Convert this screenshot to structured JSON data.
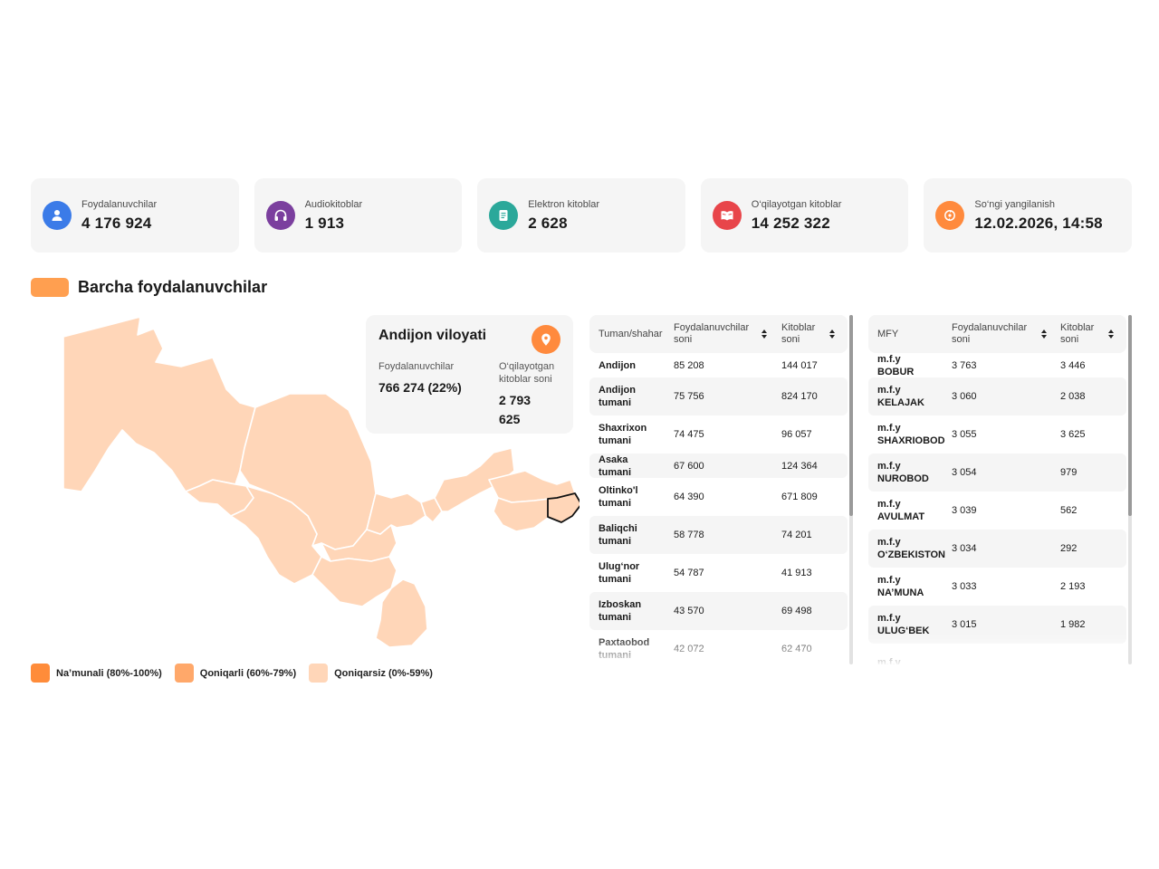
{
  "stats": [
    {
      "label": "Foydalanuvchilar",
      "value": "4 176 924",
      "icon": "user-icon",
      "color": "#3b7be8"
    },
    {
      "label": "Audiokitoblar",
      "value": "1 913",
      "icon": "headphones-icon",
      "color": "#7b3f9e"
    },
    {
      "label": "Elektron kitoblar",
      "value": "2 628",
      "icon": "ebook-icon",
      "color": "#2ba89a"
    },
    {
      "label": "O‘qilayotgan kitoblar",
      "value": "14 252 322",
      "icon": "reading-book-icon",
      "color": "#e8454a"
    },
    {
      "label": "So‘ngi yangilanish",
      "value": "12.02.2026, 14:58",
      "icon": "refresh-icon",
      "color": "#ff8a3d"
    }
  ],
  "section": {
    "title": "Barcha foydalanuvchilar",
    "swatch_color": "#ff9f50"
  },
  "map": {
    "fill_color": "#ffd6b8",
    "border_color": "#ffffff",
    "selected_region": "Andijon viloyati",
    "selected_stroke": "#111111"
  },
  "region_card": {
    "name": "Andijon viloyati",
    "users_label": "Foydalanuvchilar",
    "users_value": "766 274 (22%)",
    "reading_label": "O‘qilayotgan kitoblar soni",
    "reading_value": "2 793 625"
  },
  "legend": [
    {
      "label": "Na’munali (80%-100%)",
      "color": "#ff8c3a"
    },
    {
      "label": "Qoniqarli (60%-79%)",
      "color": "#ffa86a"
    },
    {
      "label": "Qoniqarsiz (0%-59%)",
      "color": "#ffd6b8"
    }
  ],
  "districts_table": {
    "headers": [
      "Tuman/shahar",
      "Foydalanuvchilar soni",
      "Kitoblar soni"
    ],
    "rows": [
      [
        "Andijon",
        "85 208",
        "144 017"
      ],
      [
        "Andijon tumani",
        "75 756",
        "824 170"
      ],
      [
        "Shaxrixon tumani",
        "74 475",
        "96 057"
      ],
      [
        "Asaka tumani",
        "67 600",
        "124 364"
      ],
      [
        "Oltinko'l tumani",
        "64 390",
        "671 809"
      ],
      [
        "Baliqchi tumani",
        "58 778",
        "74 201"
      ],
      [
        "Ulug‘nor tumani",
        "54 787",
        "41 913"
      ],
      [
        "Izboskan tumani",
        "43 570",
        "69 498"
      ],
      [
        "Paxtaobod tumani",
        "42 072",
        "62 470"
      ]
    ]
  },
  "mfy_table": {
    "headers": [
      "MFY",
      "Foydalanuvchilar soni",
      "Kitoblar soni"
    ],
    "rows": [
      [
        "m.f.y BOBUR",
        "3 763",
        "3 446"
      ],
      [
        "m.f.y KELAJAK",
        "3 060",
        "2 038"
      ],
      [
        "m.f.y SHAXRIOBOD",
        "3 055",
        "3 625"
      ],
      [
        "m.f.y NUROBOD",
        "3 054",
        "979"
      ],
      [
        "m.f.y AVULMAT",
        "3 039",
        "562"
      ],
      [
        "m.f.y O‘ZBEKISTON",
        "3 034",
        "292"
      ],
      [
        "m.f.y NA’MUNA",
        "3 033",
        "2 193"
      ],
      [
        "m.f.y ULUG‘BEK",
        "3 015",
        "1 982"
      ],
      [
        "m.f.y",
        "",
        ""
      ]
    ]
  }
}
